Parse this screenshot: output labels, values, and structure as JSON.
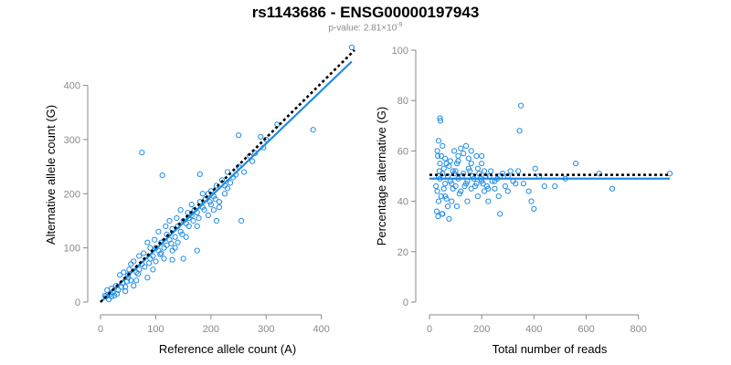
{
  "title": "rs1143686 - ENSG00000197943",
  "subtitle": {
    "prefix": "p-value: 2.81×10",
    "exponent": "-9"
  },
  "colors": {
    "points": "#1f8ce6",
    "fit": "#1f8ce6",
    "reference": "#000000",
    "axis": "#888888",
    "tick_text": "#8a8a8a"
  },
  "chart_data": [
    {
      "type": "scatter",
      "xlabel": "Reference allele count (A)",
      "ylabel": "Alternative allele count (G)",
      "xlim": [
        0,
        460
      ],
      "ylim": [
        0,
        470
      ],
      "xticks": [
        0,
        100,
        200,
        300,
        400
      ],
      "yticks": [
        0,
        100,
        200,
        300,
        400
      ],
      "grid": false,
      "fit_line": {
        "x": [
          0,
          455
        ],
        "y": [
          0,
          444
        ]
      },
      "reference_line": {
        "x": [
          0,
          460
        ],
        "y": [
          0,
          465
        ]
      },
      "points": [
        [
          455,
          470
        ],
        [
          385,
          318
        ],
        [
          320,
          328
        ],
        [
          290,
          305
        ],
        [
          250,
          308
        ],
        [
          75,
          276
        ],
        [
          112,
          234
        ],
        [
          180,
          236
        ],
        [
          255,
          150
        ],
        [
          175,
          95
        ],
        [
          130,
          78
        ],
        [
          85,
          45
        ],
        [
          60,
          30
        ],
        [
          30,
          15
        ],
        [
          15,
          5
        ],
        [
          12,
          22
        ],
        [
          20,
          25
        ],
        [
          25,
          12
        ],
        [
          40,
          35
        ],
        [
          45,
          28
        ],
        [
          50,
          50
        ],
        [
          55,
          40
        ],
        [
          65,
          55
        ],
        [
          70,
          60
        ],
        [
          75,
          70
        ],
        [
          80,
          65
        ],
        [
          90,
          80
        ],
        [
          95,
          85
        ],
        [
          100,
          100
        ],
        [
          105,
          95
        ],
        [
          110,
          110
        ],
        [
          115,
          100
        ],
        [
          120,
          125
        ],
        [
          125,
          115
        ],
        [
          130,
          135
        ],
        [
          135,
          120
        ],
        [
          140,
          140
        ],
        [
          145,
          130
        ],
        [
          150,
          150
        ],
        [
          155,
          145
        ],
        [
          160,
          155
        ],
        [
          165,
          160
        ],
        [
          170,
          170
        ],
        [
          175,
          165
        ],
        [
          180,
          185
        ],
        [
          185,
          175
        ],
        [
          190,
          190
        ],
        [
          195,
          200
        ],
        [
          200,
          205
        ],
        [
          205,
          195
        ],
        [
          210,
          215
        ],
        [
          215,
          185
        ],
        [
          220,
          225
        ],
        [
          225,
          200
        ],
        [
          230,
          240
        ],
        [
          240,
          230
        ],
        [
          250,
          250
        ],
        [
          260,
          240
        ],
        [
          270,
          270
        ],
        [
          280,
          275
        ],
        [
          300,
          300
        ],
        [
          35,
          50
        ],
        [
          45,
          20
        ],
        [
          55,
          70
        ],
        [
          65,
          40
        ],
        [
          85,
          110
        ],
        [
          95,
          60
        ],
        [
          105,
          130
        ],
        [
          115,
          80
        ],
        [
          125,
          150
        ],
        [
          135,
          100
        ],
        [
          145,
          170
        ],
        [
          155,
          120
        ],
        [
          165,
          180
        ],
        [
          175,
          140
        ],
        [
          185,
          200
        ],
        [
          195,
          160
        ],
        [
          205,
          170
        ],
        [
          210,
          150
        ],
        [
          225,
          215
        ],
        [
          150,
          80
        ],
        [
          160,
          140
        ],
        [
          100,
          75
        ],
        [
          110,
          90
        ],
        [
          90,
          100
        ],
        [
          70,
          85
        ],
        [
          60,
          75
        ],
        [
          50,
          45
        ],
        [
          42,
          55
        ],
        [
          38,
          28
        ],
        [
          28,
          30
        ],
        [
          22,
          18
        ],
        [
          18,
          15
        ],
        [
          10,
          10
        ],
        [
          8,
          12
        ],
        [
          140,
          110
        ],
        [
          130,
          95
        ],
        [
          120,
          105
        ],
        [
          200,
          180
        ],
        [
          230,
          210
        ],
        [
          20,
          10
        ],
        [
          32,
          22
        ],
        [
          48,
          38
        ],
        [
          52,
          60
        ],
        [
          68,
          52
        ],
        [
          78,
          90
        ],
        [
          88,
          72
        ],
        [
          98,
          115
        ],
        [
          108,
          88
        ],
        [
          118,
          140
        ],
        [
          128,
          108
        ],
        [
          138,
          155
        ],
        [
          148,
          125
        ],
        [
          158,
          165
        ],
        [
          168,
          150
        ],
        [
          178,
          155
        ],
        [
          188,
          170
        ],
        [
          198,
          185
        ],
        [
          208,
          190
        ],
        [
          215,
          175
        ],
        [
          235,
          220
        ],
        [
          245,
          235
        ],
        [
          275,
          260
        ],
        [
          295,
          285
        ]
      ]
    },
    {
      "type": "scatter",
      "xlabel": "Total number of reads",
      "ylabel": "Percentage alternative (G)",
      "xlim": [
        0,
        920
      ],
      "ylim": [
        0,
        100
      ],
      "xticks": [
        0,
        200,
        400,
        600,
        800
      ],
      "yticks": [
        0,
        20,
        40,
        60,
        80,
        100
      ],
      "grid": false,
      "fit_line": {
        "x": [
          0,
          920
        ],
        "y": [
          49,
          49
        ]
      },
      "reference_line": {
        "x": [
          0,
          920
        ],
        "y": [
          50.5,
          50.5
        ]
      },
      "points": [
        [
          920,
          51
        ],
        [
          700,
          45
        ],
        [
          650,
          51
        ],
        [
          560,
          55
        ],
        [
          520,
          49
        ],
        [
          480,
          46
        ],
        [
          440,
          46
        ],
        [
          420,
          50
        ],
        [
          405,
          53
        ],
        [
          400,
          37
        ],
        [
          390,
          40
        ],
        [
          350,
          78
        ],
        [
          345,
          68
        ],
        [
          300,
          44
        ],
        [
          270,
          35
        ],
        [
          250,
          45
        ],
        [
          210,
          44
        ],
        [
          200,
          55
        ],
        [
          180,
          58
        ],
        [
          160,
          60
        ],
        [
          150,
          57
        ],
        [
          140,
          62
        ],
        [
          130,
          59
        ],
        [
          120,
          61
        ],
        [
          110,
          58
        ],
        [
          100,
          52
        ],
        [
          95,
          60
        ],
        [
          90,
          45
        ],
        [
          80,
          48
        ],
        [
          75,
          33
        ],
        [
          70,
          50
        ],
        [
          65,
          55
        ],
        [
          60,
          47
        ],
        [
          55,
          53
        ],
        [
          50,
          35
        ],
        [
          45,
          42
        ],
        [
          40,
          73
        ],
        [
          38,
          52
        ],
        [
          35,
          64
        ],
        [
          32,
          58
        ],
        [
          30,
          44
        ],
        [
          28,
          36
        ],
        [
          25,
          46
        ],
        [
          40,
          49
        ],
        [
          50,
          51
        ],
        [
          60,
          42
        ],
        [
          70,
          38
        ],
        [
          80,
          56
        ],
        [
          90,
          52
        ],
        [
          100,
          46
        ],
        [
          110,
          49
        ],
        [
          120,
          44
        ],
        [
          130,
          51
        ],
        [
          140,
          47
        ],
        [
          150,
          53
        ],
        [
          160,
          45
        ],
        [
          170,
          49
        ],
        [
          180,
          47
        ],
        [
          190,
          51
        ],
        [
          200,
          48
        ],
        [
          210,
          52
        ],
        [
          220,
          46
        ],
        [
          230,
          50
        ],
        [
          240,
          48
        ],
        [
          260,
          49
        ],
        [
          280,
          51
        ],
        [
          300,
          50
        ],
        [
          320,
          48
        ],
        [
          340,
          52
        ],
        [
          360,
          47
        ],
        [
          380,
          44
        ],
        [
          30,
          60
        ],
        [
          35,
          40
        ],
        [
          45,
          58
        ],
        [
          55,
          45
        ],
        [
          65,
          41
        ],
        [
          75,
          54
        ],
        [
          85,
          47
        ],
        [
          95,
          51
        ],
        [
          105,
          55
        ],
        [
          115,
          43
        ],
        [
          125,
          50
        ],
        [
          135,
          46
        ],
        [
          145,
          48
        ],
        [
          155,
          52
        ],
        [
          165,
          50
        ],
        [
          175,
          46
        ],
        [
          185,
          53
        ],
        [
          195,
          49
        ],
        [
          205,
          47
        ],
        [
          215,
          50
        ],
        [
          225,
          45
        ],
        [
          235,
          52
        ],
        [
          250,
          48
        ],
        [
          270,
          50
        ],
        [
          290,
          46
        ],
        [
          310,
          52
        ],
        [
          330,
          47
        ],
        [
          42,
          72
        ],
        [
          48,
          35
        ],
        [
          33,
          34
        ],
        [
          85,
          40
        ],
        [
          105,
          38
        ],
        [
          145,
          40
        ],
        [
          185,
          42
        ],
        [
          225,
          40
        ],
        [
          265,
          42
        ],
        [
          160,
          55
        ],
        [
          200,
          58
        ],
        [
          110,
          56
        ],
        [
          60,
          57
        ],
        [
          50,
          62
        ],
        [
          40,
          55
        ],
        [
          35,
          50
        ]
      ]
    }
  ]
}
